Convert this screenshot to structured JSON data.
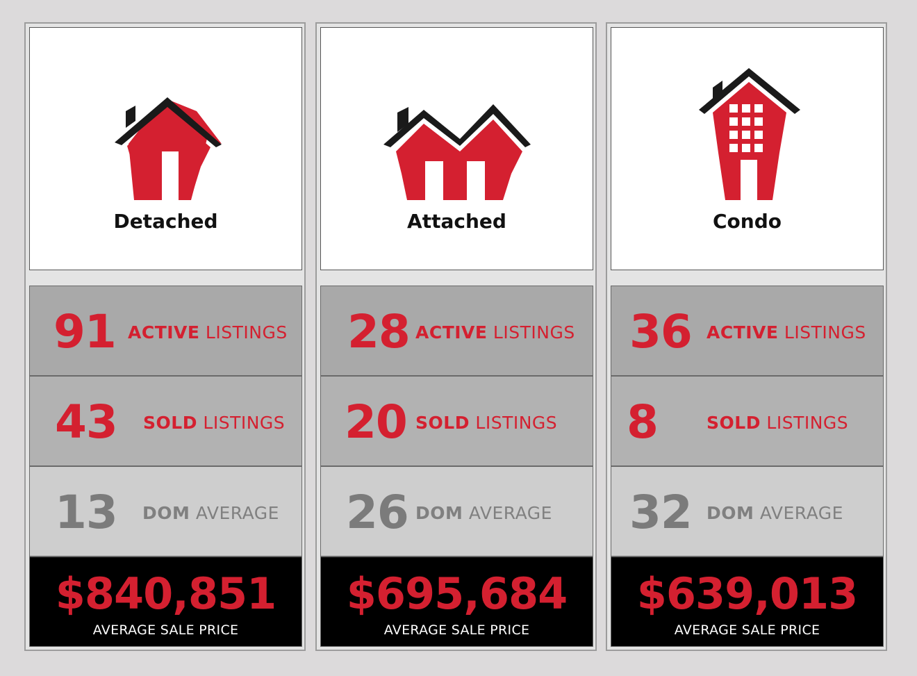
{
  "cards": [
    {
      "type": "Detached",
      "active": "91",
      "active_bold": "ACTIVE",
      "active_rest": " LISTINGS",
      "sold": "43",
      "sold_bold": "SOLD",
      "sold_rest": " LISTINGS",
      "dom": "13",
      "dom_bold": "DOM",
      "dom_rest": " AVERAGE",
      "price": "$840,851",
      "price_label": "AVERAGE SALE PRICE"
    },
    {
      "type": "Attached",
      "active": "28",
      "active_bold": "ACTIVE",
      "active_rest": " LISTINGS",
      "sold": "20",
      "sold_bold": "SOLD",
      "sold_rest": " LISTINGS",
      "dom": "26",
      "dom_bold": "DOM",
      "dom_rest": " AVERAGE",
      "price": "$695,684",
      "price_label": "AVERAGE SALE PRICE"
    },
    {
      "type": "Condo",
      "active": "36",
      "active_bold": "ACTIVE",
      "active_rest": " LISTINGS",
      "sold": "8",
      "sold_bold": "SOLD",
      "sold_rest": " LISTINGS",
      "dom": "32",
      "dom_bold": "DOM",
      "dom_rest": " AVERAGE",
      "price": "$639,013",
      "price_label": "AVERAGE SALE PRICE"
    }
  ],
  "icons": [
    "detached-house-icon",
    "attached-house-icon",
    "condo-building-icon"
  ],
  "colors": {
    "accent": "#d42030",
    "roof": "#1a1a1a",
    "price_bg": "#000000"
  }
}
